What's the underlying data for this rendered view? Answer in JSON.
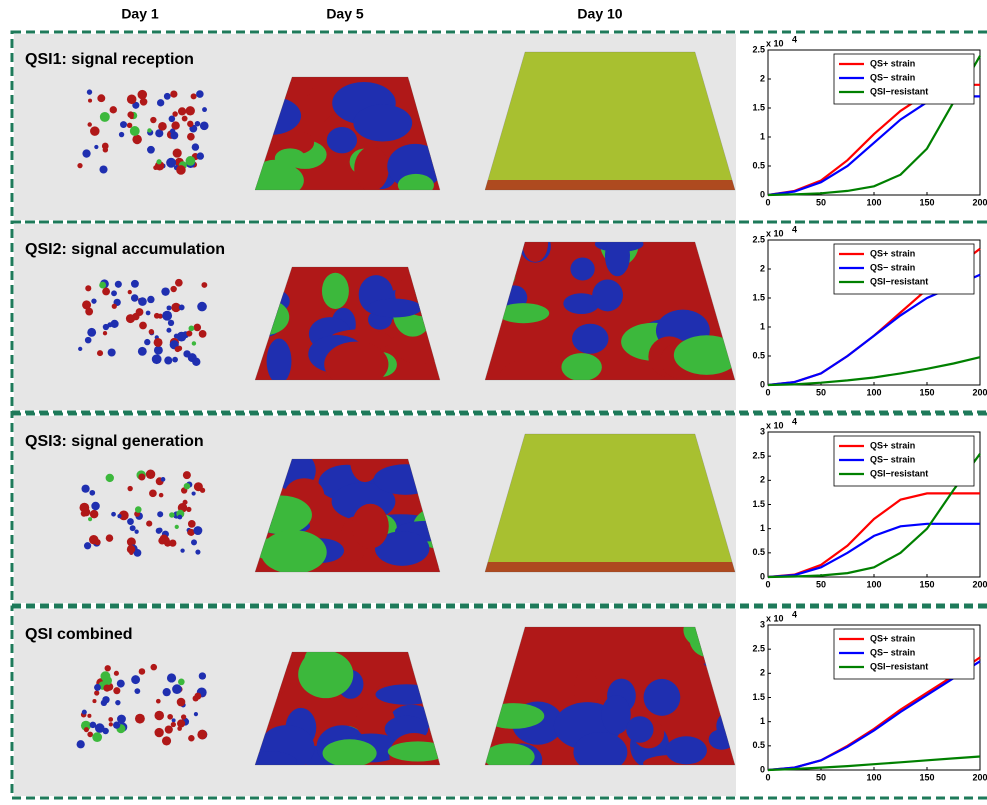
{
  "columns": [
    "Day 1",
    "Day 5",
    "Day 10"
  ],
  "chart_data": [
    {
      "type": "line",
      "title": "QSI1: signal reception",
      "x": [
        0,
        25,
        50,
        75,
        100,
        125,
        150,
        175,
        200
      ],
      "xlim": [
        0,
        200
      ],
      "xticks": [
        0,
        50,
        100,
        150,
        200
      ],
      "ylim": [
        0,
        2.5
      ],
      "yticks": [
        0,
        0.5,
        1,
        1.5,
        2,
        2.5
      ],
      "y_multiplier": {
        "base": "x 10",
        "exponent": "4"
      },
      "legend": "top-right",
      "series": [
        {
          "name": "QS+ strain",
          "color": "#ff0000",
          "values": [
            0,
            0.07,
            0.25,
            0.6,
            1.05,
            1.45,
            1.75,
            1.9,
            1.9
          ]
        },
        {
          "name": "QS− strain",
          "color": "#0000ff",
          "values": [
            0,
            0.06,
            0.22,
            0.5,
            0.9,
            1.3,
            1.6,
            1.7,
            1.7
          ]
        },
        {
          "name": "QSI−resistant",
          "color": "#008000",
          "values": [
            0,
            0.01,
            0.03,
            0.07,
            0.15,
            0.35,
            0.8,
            1.6,
            2.4
          ]
        }
      ]
    },
    {
      "type": "line",
      "title": "QSI2: signal accumulation",
      "x": [
        0,
        25,
        50,
        75,
        100,
        125,
        150,
        175,
        200
      ],
      "xlim": [
        0,
        200
      ],
      "xticks": [
        0,
        50,
        100,
        150,
        200
      ],
      "ylim": [
        0,
        2.5
      ],
      "yticks": [
        0,
        0.5,
        1,
        1.5,
        2,
        2.5
      ],
      "y_multiplier": {
        "base": "x 10",
        "exponent": "4"
      },
      "legend": "top-right",
      "series": [
        {
          "name": "QS+ strain",
          "color": "#ff0000",
          "values": [
            0,
            0.05,
            0.2,
            0.5,
            0.85,
            1.25,
            1.65,
            2.0,
            2.35
          ]
        },
        {
          "name": "QS− strain",
          "color": "#0000ff",
          "values": [
            0,
            0.05,
            0.2,
            0.5,
            0.85,
            1.2,
            1.5,
            1.7,
            1.9
          ]
        },
        {
          "name": "QSI−resistant",
          "color": "#008000",
          "values": [
            0,
            0.01,
            0.04,
            0.08,
            0.13,
            0.2,
            0.28,
            0.37,
            0.48
          ]
        }
      ]
    },
    {
      "type": "line",
      "title": "QSI3: signal generation",
      "x": [
        0,
        25,
        50,
        75,
        100,
        125,
        150,
        175,
        200
      ],
      "xlim": [
        0,
        200
      ],
      "xticks": [
        0,
        50,
        100,
        150,
        200
      ],
      "ylim": [
        0,
        3
      ],
      "yticks": [
        0,
        0.5,
        1,
        1.5,
        2,
        2.5,
        3
      ],
      "y_multiplier": {
        "base": "x 10",
        "exponent": "4"
      },
      "legend": "top-right",
      "series": [
        {
          "name": "QS+ strain",
          "color": "#ff0000",
          "values": [
            0,
            0.05,
            0.25,
            0.65,
            1.2,
            1.6,
            1.73,
            1.73,
            1.73
          ]
        },
        {
          "name": "QS− strain",
          "color": "#0000ff",
          "values": [
            0,
            0.04,
            0.2,
            0.5,
            0.85,
            1.05,
            1.1,
            1.1,
            1.1
          ]
        },
        {
          "name": "QSI−resistant",
          "color": "#008000",
          "values": [
            0,
            0.01,
            0.03,
            0.08,
            0.2,
            0.5,
            1.0,
            1.8,
            2.55
          ]
        }
      ]
    },
    {
      "type": "line",
      "title": "QSI combined",
      "x": [
        0,
        25,
        50,
        75,
        100,
        125,
        150,
        175,
        200
      ],
      "xlim": [
        0,
        200
      ],
      "xticks": [
        0,
        50,
        100,
        150,
        200
      ],
      "ylim": [
        0,
        3
      ],
      "yticks": [
        0,
        0.5,
        1,
        1.5,
        2,
        2.5,
        3
      ],
      "y_multiplier": {
        "base": "x 10",
        "exponent": "4"
      },
      "legend": "top-right",
      "series": [
        {
          "name": "QS+ strain",
          "color": "#ff0000",
          "values": [
            0,
            0.05,
            0.2,
            0.5,
            0.85,
            1.25,
            1.6,
            1.95,
            2.33
          ]
        },
        {
          "name": "QS− strain",
          "color": "#0000ff",
          "values": [
            0,
            0.05,
            0.2,
            0.48,
            0.82,
            1.2,
            1.55,
            1.9,
            2.25
          ]
        },
        {
          "name": "QSI−resistant",
          "color": "#008000",
          "values": [
            0,
            0.02,
            0.05,
            0.08,
            0.12,
            0.16,
            0.2,
            0.24,
            0.28
          ]
        }
      ]
    }
  ]
}
